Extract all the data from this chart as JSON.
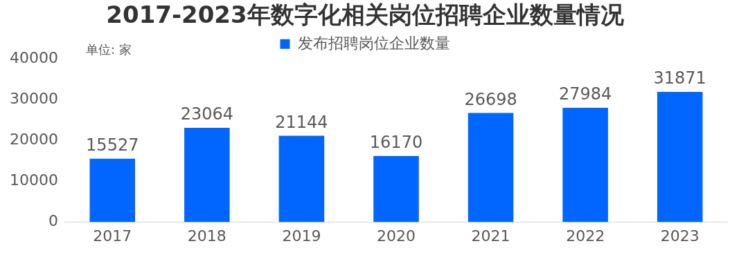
{
  "chart_data": {
    "type": "bar",
    "title": "2017-2023年数字化相关岗位招聘企业数量情况",
    "categories": [
      "2017",
      "2018",
      "2019",
      "2020",
      "2021",
      "2022",
      "2023"
    ],
    "series": [
      {
        "name": "发布招聘岗位企业数量",
        "color": "#0066ff",
        "values": [
          15527,
          23064,
          21144,
          16170,
          26698,
          27984,
          31871
        ]
      }
    ],
    "ylim": [
      0,
      40000
    ],
    "yticks": [
      0,
      10000,
      20000,
      30000,
      40000
    ],
    "grid": false,
    "legend": "top",
    "data_labels": true,
    "annotations": [
      "单位: 家"
    ]
  }
}
